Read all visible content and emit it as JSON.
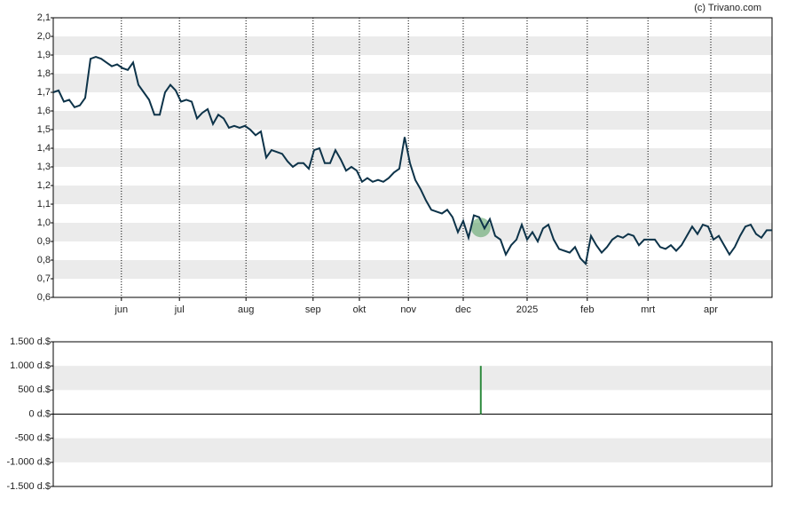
{
  "credit": "(c) Trivano.com",
  "chart_data": [
    {
      "type": "line",
      "color": "#0d3349",
      "xlim": [
        0,
        135
      ],
      "xticks": [
        {
          "value": 12.8,
          "label": "jun"
        },
        {
          "value": 23.7,
          "label": "jul"
        },
        {
          "value": 36.2,
          "label": "aug"
        },
        {
          "value": 48.8,
          "label": "sep"
        },
        {
          "value": 57.5,
          "label": "okt"
        },
        {
          "value": 66.7,
          "label": "nov"
        },
        {
          "value": 77,
          "label": "dec"
        },
        {
          "value": 89,
          "label": "2025"
        },
        {
          "value": 100.3,
          "label": "feb"
        },
        {
          "value": 111.7,
          "label": "mrt"
        },
        {
          "value": 123.5,
          "label": "apr"
        }
      ],
      "ylim": [
        0.6,
        2.1
      ],
      "yticks": [
        {
          "value": 0.6,
          "label": "0,6"
        },
        {
          "value": 0.7,
          "label": "0,7"
        },
        {
          "value": 0.8,
          "label": "0,8"
        },
        {
          "value": 0.9,
          "label": "0,9"
        },
        {
          "value": 1.0,
          "label": "1,0"
        },
        {
          "value": 1.1,
          "label": "1,1"
        },
        {
          "value": 1.2,
          "label": "1,2"
        },
        {
          "value": 1.3,
          "label": "1,3"
        },
        {
          "value": 1.4,
          "label": "1,4"
        },
        {
          "value": 1.5,
          "label": "1,5"
        },
        {
          "value": 1.6,
          "label": "1,6"
        },
        {
          "value": 1.7,
          "label": "1,7"
        },
        {
          "value": 1.8,
          "label": "1,8"
        },
        {
          "value": 1.9,
          "label": "1,9"
        },
        {
          "value": 2.0,
          "label": "2,0"
        },
        {
          "value": 2.1,
          "label": "2,1"
        }
      ],
      "values": [
        1.7,
        1.71,
        1.65,
        1.66,
        1.62,
        1.63,
        1.67,
        1.88,
        1.89,
        1.88,
        1.86,
        1.84,
        1.85,
        1.83,
        1.82,
        1.86,
        1.74,
        1.7,
        1.66,
        1.58,
        1.58,
        1.7,
        1.74,
        1.71,
        1.65,
        1.66,
        1.65,
        1.56,
        1.59,
        1.61,
        1.53,
        1.58,
        1.56,
        1.51,
        1.52,
        1.51,
        1.52,
        1.5,
        1.47,
        1.49,
        1.35,
        1.39,
        1.38,
        1.37,
        1.33,
        1.3,
        1.32,
        1.32,
        1.29,
        1.39,
        1.4,
        1.32,
        1.32,
        1.39,
        1.34,
        1.28,
        1.3,
        1.28,
        1.22,
        1.24,
        1.22,
        1.23,
        1.22,
        1.24,
        1.27,
        1.29,
        1.46,
        1.32,
        1.23,
        1.18,
        1.12,
        1.07,
        1.06,
        1.05,
        1.07,
        1.03,
        0.95,
        1.01,
        0.92,
        1.04,
        1.03,
        0.97,
        1.02,
        0.93,
        0.91,
        0.83,
        0.88,
        0.91,
        0.99,
        0.91,
        0.95,
        0.9,
        0.97,
        0.99,
        0.91,
        0.86,
        0.85,
        0.84,
        0.87,
        0.81,
        0.78,
        0.93,
        0.88,
        0.84,
        0.87,
        0.91,
        0.93,
        0.92,
        0.94,
        0.93,
        0.88,
        0.91,
        0.91,
        0.91,
        0.87,
        0.86,
        0.88,
        0.85,
        0.88,
        0.93,
        0.98,
        0.94,
        0.99,
        0.98,
        0.91,
        0.93,
        0.88,
        0.83,
        0.87,
        0.93,
        0.98,
        0.99,
        0.94,
        0.92,
        0.96,
        0.96
      ]
    },
    {
      "type": "bar",
      "color": "#2e8b3e",
      "xlim": [
        0,
        135
      ],
      "x": [
        80.3
      ],
      "values": [
        1000
      ],
      "ylim": [
        -1500,
        1500
      ],
      "yticks": [
        {
          "value": -1500,
          "label": "-1.500 d.$"
        },
        {
          "value": -1000,
          "label": "-1.000 d.$"
        },
        {
          "value": -500,
          "label": "-500 d.$"
        },
        {
          "value": 0,
          "label": "0 d.$"
        },
        {
          "value": 500,
          "label": "500 d.$"
        },
        {
          "value": 1000,
          "label": "1.000 d.$"
        },
        {
          "value": 1500,
          "label": "1.500 d.$"
        }
      ]
    }
  ]
}
